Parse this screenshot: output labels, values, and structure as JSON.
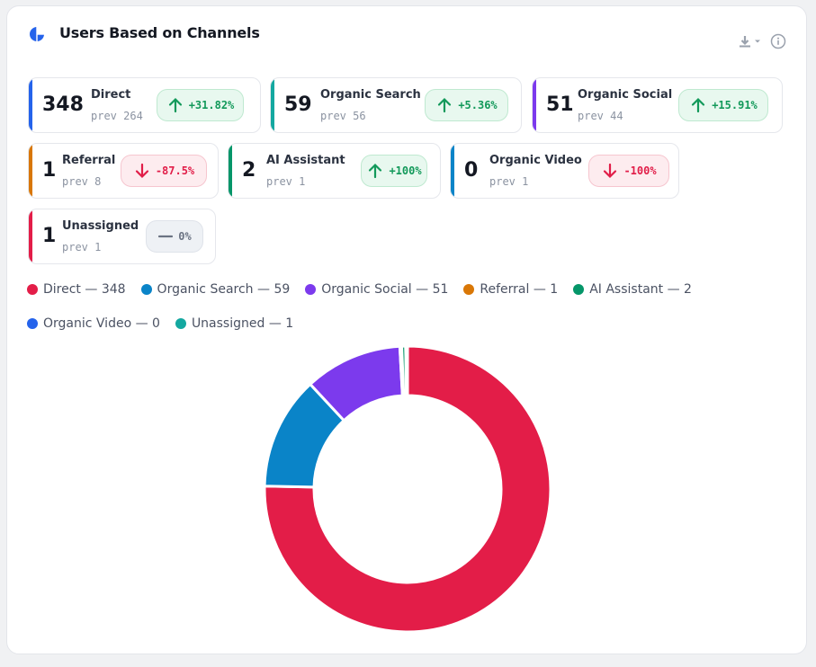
{
  "header": {
    "title": "Users Based on Channels",
    "title_icon": "pie-chart-icon",
    "actions": [
      "download-icon",
      "info-icon"
    ]
  },
  "colors": {
    "direct": "#e31d48",
    "organic_search": "#0a84c8",
    "organic_social": "#7c3aed",
    "referral": "#d97706",
    "ai_assistant": "#059669",
    "organic_video": "#2563eb",
    "unassigned": "#14a8a0",
    "positive": "#12995a",
    "negative": "#e11d48",
    "neutral": "#6b7383"
  },
  "stats": [
    {
      "value": "348",
      "label": "Direct",
      "prev": "prev 264",
      "change": "+31.82%",
      "trend": "up",
      "bar_color": "#2563eb"
    },
    {
      "value": "59",
      "label": "Organic Search",
      "prev": "prev 56",
      "change": "+5.36%",
      "trend": "up",
      "bar_color": "#14a8a0"
    },
    {
      "value": "51",
      "label": "Organic Social",
      "prev": "prev 44",
      "change": "+15.91%",
      "trend": "up",
      "bar_color": "#7c3aed"
    },
    {
      "value": "1",
      "label": "Referral",
      "prev": "prev 8",
      "change": "-87.5%",
      "trend": "down",
      "bar_color": "#d97706"
    },
    {
      "value": "2",
      "label": "AI Assistant",
      "prev": "prev 1",
      "change": "+100%",
      "trend": "up",
      "bar_color": "#059669"
    },
    {
      "value": "0",
      "label": "Organic Video",
      "prev": "prev 1",
      "change": "-100%",
      "trend": "down",
      "bar_color": "#0a84c8"
    },
    {
      "value": "1",
      "label": "Unassigned",
      "prev": "prev 1",
      "change": "0%",
      "trend": "flat",
      "bar_color": "#e31d48"
    }
  ],
  "legend": [
    {
      "text": "Direct — 348",
      "color": "#e31d48"
    },
    {
      "text": "Organic Search — 59",
      "color": "#0a84c8"
    },
    {
      "text": "Organic Social — 51",
      "color": "#7c3aed"
    },
    {
      "text": "Referral — 1",
      "color": "#d97706"
    },
    {
      "text": "AI Assistant — 2",
      "color": "#059669"
    },
    {
      "text": "Organic Video — 0",
      "color": "#2563eb"
    },
    {
      "text": "Unassigned — 1",
      "color": "#14a8a0"
    }
  ],
  "chart_data": {
    "type": "pie",
    "variant": "donut",
    "categories": [
      "Direct",
      "Organic Search",
      "Organic Social",
      "Referral",
      "AI Assistant",
      "Organic Video",
      "Unassigned"
    ],
    "values": [
      348,
      59,
      51,
      1,
      2,
      0,
      1
    ],
    "colors": [
      "#e31d48",
      "#0a84c8",
      "#7c3aed",
      "#d97706",
      "#059669",
      "#2563eb",
      "#14a8a0"
    ],
    "direction": "clockwise",
    "start": "top",
    "legend_position": "top-left"
  }
}
